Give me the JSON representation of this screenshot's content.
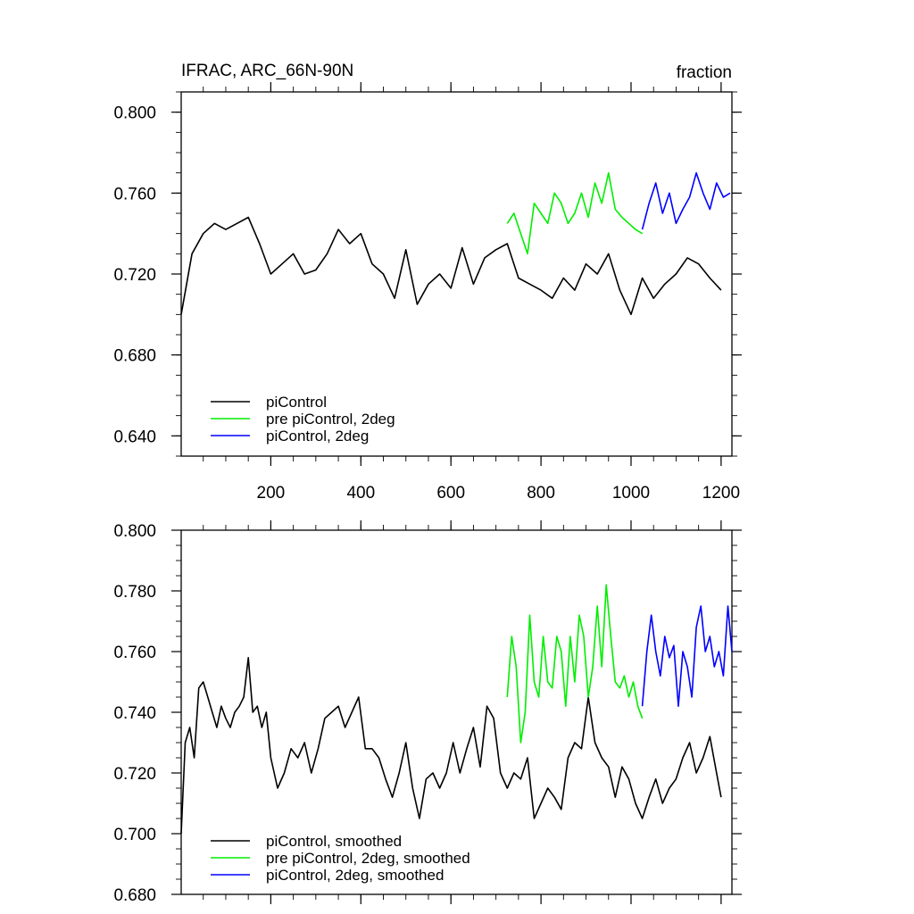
{
  "colors": {
    "piControl": "#000000",
    "pre_piControl_2deg": "#00ee00",
    "piControl_2deg": "#0000ff"
  },
  "chart_data": [
    {
      "type": "line",
      "title": "IFRAC, ARC_66N-90N",
      "title_right": "fraction",
      "xlim": [
        1,
        1224
      ],
      "ylim": [
        0.63,
        0.81
      ],
      "xticks": [
        200,
        400,
        600,
        800,
        1000,
        1200
      ],
      "xtick_labels": [
        "200",
        "400",
        "600",
        "800",
        "1000",
        "1200"
      ],
      "yticks": [
        0.64,
        0.68,
        0.72,
        0.76,
        0.8
      ],
      "ytick_labels": [
        "0.640",
        "0.680",
        "0.720",
        "0.760",
        "0.800"
      ],
      "legend_position": "bottom-left",
      "series": [
        {
          "name": "piControl",
          "color": "#000000",
          "x": [
            1,
            25,
            50,
            75,
            100,
            125,
            150,
            175,
            200,
            225,
            250,
            275,
            300,
            325,
            350,
            375,
            400,
            425,
            450,
            475,
            500,
            525,
            550,
            575,
            600,
            625,
            650,
            675,
            700,
            725,
            750,
            775,
            800,
            825,
            850,
            875,
            900,
            925,
            950,
            975,
            1000,
            1025,
            1050,
            1075,
            1100,
            1125,
            1150,
            1175,
            1200
          ],
          "values": [
            0.7,
            0.73,
            0.74,
            0.745,
            0.742,
            0.745,
            0.748,
            0.735,
            0.72,
            0.725,
            0.73,
            0.72,
            0.722,
            0.73,
            0.742,
            0.735,
            0.74,
            0.725,
            0.72,
            0.708,
            0.732,
            0.705,
            0.715,
            0.72,
            0.713,
            0.733,
            0.715,
            0.728,
            0.732,
            0.735,
            0.718,
            0.715,
            0.712,
            0.708,
            0.718,
            0.712,
            0.725,
            0.72,
            0.73,
            0.712,
            0.7,
            0.718,
            0.708,
            0.715,
            0.72,
            0.728,
            0.725,
            0.718,
            0.712
          ]
        },
        {
          "name": "pre piControl, 2deg",
          "color": "#00ee00",
          "x": [
            725,
            740,
            755,
            770,
            785,
            800,
            815,
            830,
            845,
            860,
            875,
            890,
            905,
            920,
            935,
            950,
            965,
            980,
            995,
            1010,
            1025
          ],
          "values": [
            0.745,
            0.75,
            0.74,
            0.73,
            0.755,
            0.75,
            0.745,
            0.76,
            0.755,
            0.745,
            0.75,
            0.76,
            0.748,
            0.765,
            0.755,
            0.77,
            0.752,
            0.748,
            0.745,
            0.742,
            0.74
          ]
        },
        {
          "name": "piControl, 2deg",
          "color": "#0000ff",
          "x": [
            1025,
            1040,
            1055,
            1070,
            1085,
            1100,
            1115,
            1130,
            1145,
            1160,
            1175,
            1190,
            1205,
            1220
          ],
          "values": [
            0.742,
            0.755,
            0.765,
            0.75,
            0.76,
            0.745,
            0.752,
            0.758,
            0.77,
            0.76,
            0.752,
            0.765,
            0.758,
            0.76
          ]
        }
      ]
    },
    {
      "type": "line",
      "xlim": [
        1,
        1224
      ],
      "ylim": [
        0.68,
        0.8
      ],
      "xticks": [
        200,
        400,
        600,
        800,
        1000,
        1200
      ],
      "yticks": [
        0.68,
        0.7,
        0.72,
        0.74,
        0.76,
        0.78,
        0.8
      ],
      "ytick_labels": [
        "0.680",
        "0.700",
        "0.720",
        "0.740",
        "0.760",
        "0.780",
        "0.800"
      ],
      "legend_position": "bottom-left",
      "series": [
        {
          "name": "piControl, smoothed",
          "color": "#000000",
          "x": [
            1,
            10,
            20,
            30,
            40,
            50,
            60,
            70,
            80,
            90,
            100,
            110,
            120,
            130,
            140,
            150,
            160,
            170,
            180,
            190,
            200,
            215,
            230,
            245,
            260,
            275,
            290,
            305,
            320,
            335,
            350,
            365,
            380,
            395,
            410,
            425,
            440,
            455,
            470,
            485,
            500,
            515,
            530,
            545,
            560,
            575,
            590,
            605,
            620,
            635,
            650,
            665,
            680,
            695,
            710,
            725,
            740,
            755,
            770,
            785,
            800,
            815,
            830,
            845,
            860,
            875,
            890,
            905,
            920,
            935,
            950,
            965,
            980,
            995,
            1010,
            1025,
            1040,
            1055,
            1070,
            1085,
            1100,
            1115,
            1130,
            1145,
            1160,
            1175,
            1190,
            1200
          ],
          "values": [
            0.7,
            0.73,
            0.735,
            0.725,
            0.748,
            0.75,
            0.745,
            0.74,
            0.735,
            0.742,
            0.738,
            0.735,
            0.74,
            0.742,
            0.745,
            0.758,
            0.74,
            0.742,
            0.735,
            0.74,
            0.725,
            0.715,
            0.72,
            0.728,
            0.725,
            0.73,
            0.72,
            0.728,
            0.738,
            0.74,
            0.742,
            0.735,
            0.74,
            0.745,
            0.728,
            0.728,
            0.725,
            0.718,
            0.712,
            0.72,
            0.73,
            0.715,
            0.705,
            0.718,
            0.72,
            0.715,
            0.72,
            0.73,
            0.72,
            0.728,
            0.735,
            0.722,
            0.742,
            0.738,
            0.72,
            0.715,
            0.72,
            0.718,
            0.725,
            0.705,
            0.71,
            0.715,
            0.712,
            0.708,
            0.725,
            0.73,
            0.728,
            0.745,
            0.73,
            0.725,
            0.722,
            0.712,
            0.722,
            0.718,
            0.71,
            0.705,
            0.712,
            0.718,
            0.71,
            0.715,
            0.718,
            0.725,
            0.73,
            0.72,
            0.725,
            0.732,
            0.72,
            0.712
          ]
        },
        {
          "name": "pre piControl, 2deg, smoothed",
          "color": "#00ee00",
          "x": [
            725,
            735,
            745,
            755,
            765,
            775,
            785,
            795,
            805,
            815,
            825,
            835,
            845,
            855,
            865,
            875,
            885,
            895,
            905,
            915,
            925,
            935,
            945,
            955,
            965,
            975,
            985,
            995,
            1005,
            1015,
            1025
          ],
          "values": [
            0.745,
            0.765,
            0.755,
            0.73,
            0.74,
            0.772,
            0.75,
            0.745,
            0.765,
            0.75,
            0.748,
            0.765,
            0.76,
            0.742,
            0.765,
            0.75,
            0.772,
            0.765,
            0.745,
            0.755,
            0.775,
            0.755,
            0.782,
            0.765,
            0.75,
            0.748,
            0.752,
            0.745,
            0.75,
            0.742,
            0.738
          ]
        },
        {
          "name": "piControl, 2deg, smoothed",
          "color": "#0000ff",
          "x": [
            1025,
            1035,
            1045,
            1055,
            1065,
            1075,
            1085,
            1095,
            1105,
            1115,
            1125,
            1135,
            1145,
            1155,
            1165,
            1175,
            1185,
            1195,
            1205,
            1215,
            1224
          ],
          "values": [
            0.742,
            0.76,
            0.772,
            0.76,
            0.752,
            0.765,
            0.758,
            0.762,
            0.742,
            0.76,
            0.755,
            0.745,
            0.768,
            0.775,
            0.76,
            0.765,
            0.755,
            0.76,
            0.752,
            0.775,
            0.76
          ]
        }
      ]
    }
  ]
}
